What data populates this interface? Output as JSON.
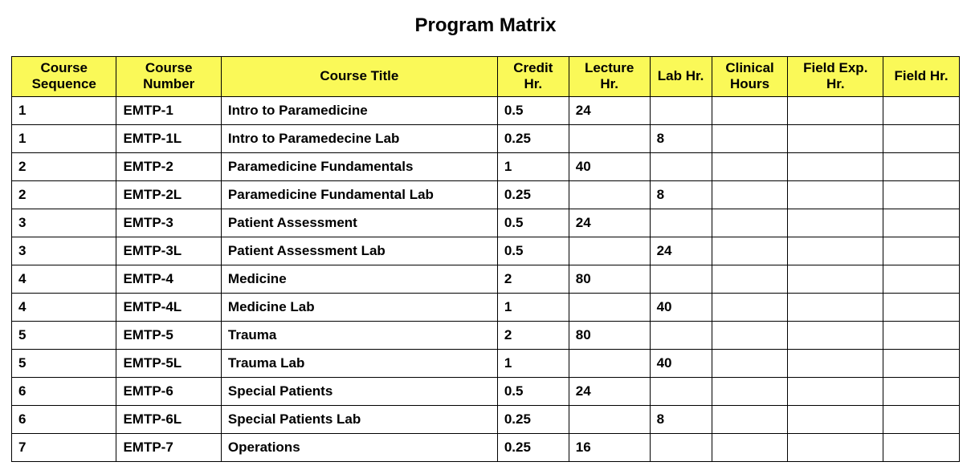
{
  "title": "Program Matrix",
  "table": {
    "type": "table",
    "header_bg": "#faf958",
    "border_color": "#000000",
    "text_color": "#000000",
    "header_fontsize": 17,
    "cell_fontsize": 17,
    "font_weight": "bold",
    "columns": [
      {
        "label": "Course Sequence",
        "width": "11%",
        "align": "center"
      },
      {
        "label": "Course Number",
        "width": "11%",
        "align": "center"
      },
      {
        "label": "Course Title",
        "width": "29%",
        "align": "center"
      },
      {
        "label": "Credit Hr.",
        "width": "7.5%",
        "align": "center"
      },
      {
        "label": "Lecture Hr.",
        "width": "8.5%",
        "align": "center"
      },
      {
        "label": "Lab Hr.",
        "width": "6.5%",
        "align": "center"
      },
      {
        "label": "Clinical Hours",
        "width": "8%",
        "align": "center"
      },
      {
        "label": "Field Exp. Hr.",
        "width": "10%",
        "align": "center"
      },
      {
        "label": "Field Hr.",
        "width": "8%",
        "align": "center"
      }
    ],
    "rows": [
      [
        "1",
        "EMTP-1",
        "Intro to Paramedicine",
        "0.5",
        "24",
        "",
        "",
        "",
        ""
      ],
      [
        "1",
        "EMTP-1L",
        "Intro to Paramedecine Lab",
        "0.25",
        "",
        "8",
        "",
        "",
        ""
      ],
      [
        "2",
        "EMTP-2",
        "Paramedicine Fundamentals",
        "1",
        "40",
        "",
        "",
        "",
        ""
      ],
      [
        "2",
        "EMTP-2L",
        "Paramedicine Fundamental Lab",
        "0.25",
        "",
        "8",
        "",
        "",
        ""
      ],
      [
        "3",
        "EMTP-3",
        "Patient Assessment",
        "0.5",
        "24",
        "",
        "",
        "",
        ""
      ],
      [
        "3",
        "EMTP-3L",
        "Patient Assessment Lab",
        "0.5",
        "",
        "24",
        "",
        "",
        ""
      ],
      [
        "4",
        "EMTP-4",
        "Medicine",
        "2",
        "80",
        "",
        "",
        "",
        ""
      ],
      [
        "4",
        "EMTP-4L",
        "Medicine Lab",
        "1",
        "",
        "40",
        "",
        "",
        ""
      ],
      [
        "5",
        "EMTP-5",
        "Trauma",
        "2",
        "80",
        "",
        "",
        "",
        ""
      ],
      [
        "5",
        "EMTP-5L",
        "Trauma Lab",
        "1",
        "",
        "40",
        "",
        "",
        ""
      ],
      [
        "6",
        "EMTP-6",
        "Special Patients",
        "0.5",
        "24",
        "",
        "",
        "",
        ""
      ],
      [
        "6",
        "EMTP-6L",
        "Special Patients Lab",
        "0.25",
        "",
        "8",
        "",
        "",
        ""
      ],
      [
        "7",
        "EMTP-7",
        "Operations",
        "0.25",
        "16",
        "",
        "",
        "",
        ""
      ]
    ]
  }
}
